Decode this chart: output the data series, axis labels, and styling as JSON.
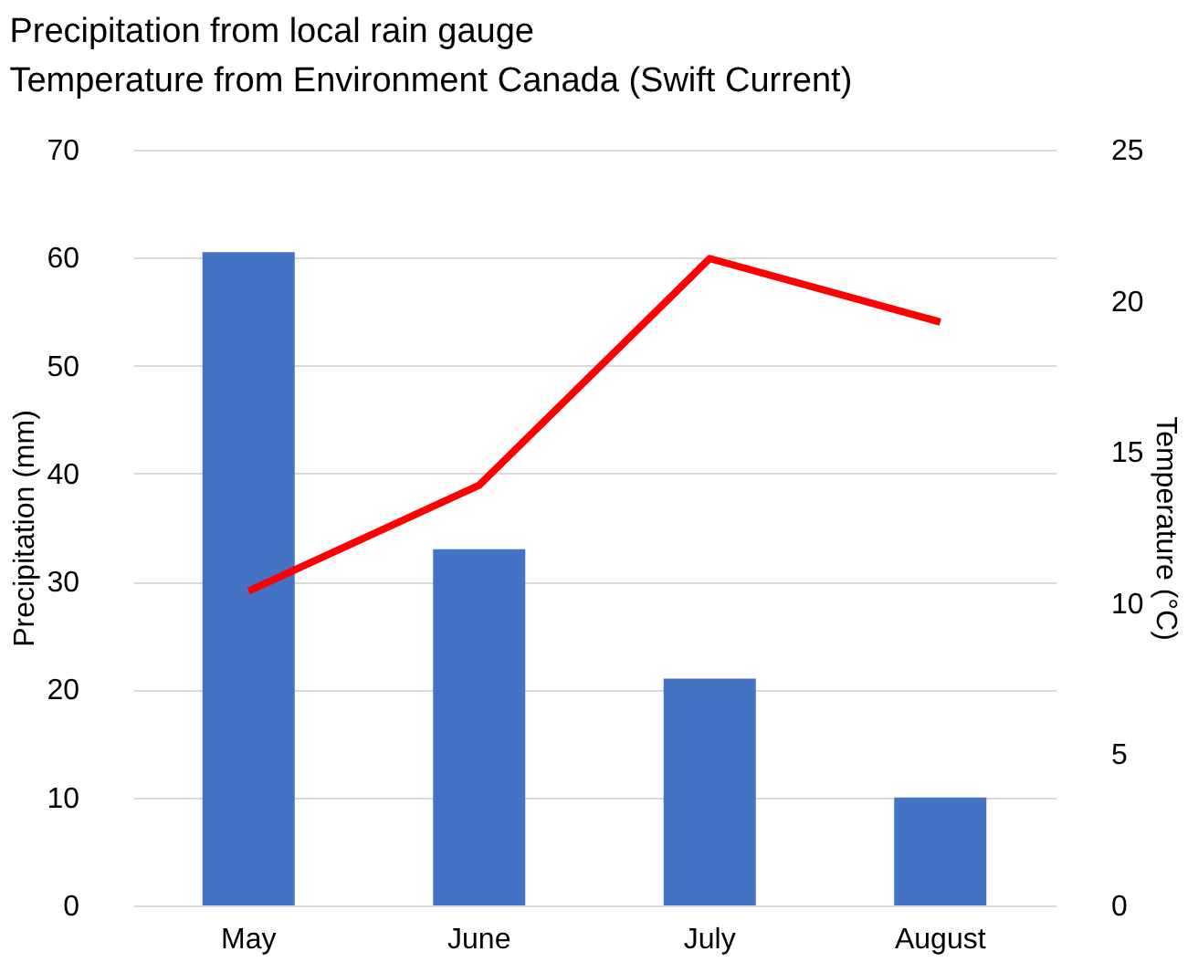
{
  "chart_data": {
    "type": "bar",
    "title": "Precipitation from local rain gauge",
    "subtitle": "Temperature from Environment Canada (Swift Current)",
    "categories": [
      "May",
      "June",
      "July",
      "August"
    ],
    "ylabel": "Precipitation (mm)",
    "y2label": "Temperature (°C)",
    "series": [
      {
        "color": "#4472c4",
        "values": [
          60.5,
          33,
          21,
          10
        ]
      },
      {
        "type": "line",
        "axis": "y2",
        "color": "#ff0000",
        "values": [
          10.4,
          13.9,
          21.4,
          19.3
        ]
      }
    ],
    "ylim": [
      0,
      70
    ],
    "yticks": [
      0,
      10,
      20,
      30,
      40,
      50,
      60,
      70
    ],
    "y2lim": [
      0,
      25
    ],
    "y2ticks": [
      0,
      5,
      10,
      15,
      20,
      25
    ],
    "grid": "y",
    "legend": false,
    "marker": "none",
    "line_style": "solid"
  }
}
